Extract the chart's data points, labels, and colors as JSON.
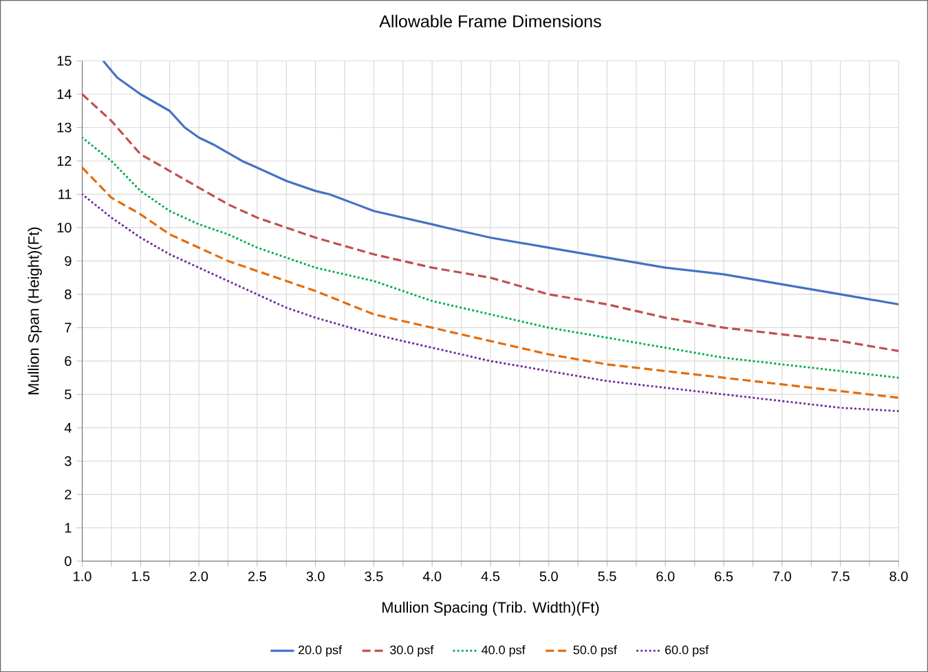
{
  "chart_data": {
    "type": "line",
    "title": "Allowable Frame Dimensions",
    "xlabel": "Mullion Spacing (Trib. Width)(Ft)",
    "ylabel": "Mullion Span (Height)(Ft)",
    "xlim": [
      1.0,
      8.0
    ],
    "ylim": [
      0,
      15
    ],
    "xticks": [
      {
        "value": 1.0,
        "label": "1.0"
      },
      {
        "value": 1.25,
        "label": null
      },
      {
        "value": 1.5,
        "label": "1.5"
      },
      {
        "value": 1.75,
        "label": null
      },
      {
        "value": 2.0,
        "label": "2.0"
      },
      {
        "value": 2.25,
        "label": null
      },
      {
        "value": 2.5,
        "label": "2.5"
      },
      {
        "value": 2.75,
        "label": null
      },
      {
        "value": 3.0,
        "label": "3.0"
      },
      {
        "value": 3.25,
        "label": null
      },
      {
        "value": 3.5,
        "label": "3.5"
      },
      {
        "value": 3.75,
        "label": null
      },
      {
        "value": 4.0,
        "label": "4.0"
      },
      {
        "value": 4.25,
        "label": null
      },
      {
        "value": 4.5,
        "label": "4.5"
      },
      {
        "value": 4.75,
        "label": null
      },
      {
        "value": 5.0,
        "label": "5.0"
      },
      {
        "value": 5.25,
        "label": null
      },
      {
        "value": 5.5,
        "label": "5.5"
      },
      {
        "value": 5.75,
        "label": null
      },
      {
        "value": 6.0,
        "label": "6.0"
      },
      {
        "value": 6.25,
        "label": null
      },
      {
        "value": 6.5,
        "label": "6.5"
      },
      {
        "value": 6.75,
        "label": null
      },
      {
        "value": 7.0,
        "label": "7.0"
      },
      {
        "value": 7.25,
        "label": null
      },
      {
        "value": 7.5,
        "label": "7.5"
      },
      {
        "value": 7.75,
        "label": null
      },
      {
        "value": 8.0,
        "label": "8.0"
      }
    ],
    "yticks": [
      0,
      1,
      2,
      3,
      4,
      5,
      6,
      7,
      8,
      9,
      10,
      11,
      12,
      13,
      14,
      15
    ],
    "grid": true,
    "legend": "bottom",
    "marker": "none",
    "series": [
      {
        "name": "20.0 psf",
        "color": "#4472c4",
        "line_style": "solid",
        "x": [
          1.18,
          1.3,
          1.5,
          1.75,
          1.88,
          2.0,
          2.12,
          2.37,
          2.5,
          2.75,
          3.0,
          3.12,
          3.5,
          4.0,
          4.12,
          4.5,
          5.0,
          5.5,
          6.0,
          6.5,
          7.0,
          7.5,
          8.0
        ],
        "values": [
          15.0,
          14.5,
          14.0,
          13.5,
          13.0,
          12.7,
          12.5,
          12.0,
          11.8,
          11.4,
          11.1,
          11.0,
          10.5,
          10.1,
          10.0,
          9.7,
          9.4,
          9.1,
          8.8,
          8.6,
          8.3,
          8.0,
          7.7
        ]
      },
      {
        "name": "30.0 psf",
        "color": "#c0504d",
        "line_style": "dashed",
        "x": [
          1.0,
          1.25,
          1.5,
          1.75,
          2.0,
          2.25,
          2.5,
          2.75,
          3.0,
          3.5,
          4.0,
          4.5,
          5.0,
          5.5,
          6.0,
          6.5,
          7.0,
          7.5,
          8.0
        ],
        "values": [
          14.0,
          13.2,
          12.2,
          11.7,
          11.2,
          10.7,
          10.3,
          10.0,
          9.7,
          9.2,
          8.8,
          8.5,
          8.0,
          7.7,
          7.3,
          7.0,
          6.8,
          6.6,
          6.3
        ]
      },
      {
        "name": "40.0 psf",
        "color": "#00b050",
        "line_style": "dotted",
        "x": [
          1.0,
          1.25,
          1.5,
          1.75,
          2.0,
          2.25,
          2.5,
          2.75,
          3.0,
          3.5,
          4.0,
          4.5,
          5.0,
          5.5,
          6.0,
          6.5,
          7.0,
          7.5,
          8.0
        ],
        "values": [
          12.7,
          12.0,
          11.1,
          10.5,
          10.1,
          9.8,
          9.4,
          9.1,
          8.8,
          8.4,
          7.8,
          7.4,
          7.0,
          6.7,
          6.4,
          6.1,
          5.9,
          5.7,
          5.5
        ]
      },
      {
        "name": "50.0 psf",
        "color": "#e46c0a",
        "line_style": "dashed",
        "x": [
          1.0,
          1.25,
          1.5,
          1.75,
          2.0,
          2.25,
          2.5,
          2.75,
          3.0,
          3.5,
          4.0,
          4.5,
          5.0,
          5.5,
          6.0,
          6.5,
          7.0,
          7.5,
          8.0
        ],
        "values": [
          11.8,
          10.9,
          10.4,
          9.8,
          9.4,
          9.0,
          8.7,
          8.4,
          8.1,
          7.4,
          7.0,
          6.6,
          6.2,
          5.9,
          5.7,
          5.5,
          5.3,
          5.1,
          4.9
        ]
      },
      {
        "name": "60.0 psf",
        "color": "#7030a0",
        "line_style": "dotted",
        "x": [
          1.0,
          1.25,
          1.5,
          1.75,
          2.0,
          2.25,
          2.5,
          2.75,
          3.0,
          3.5,
          4.0,
          4.5,
          5.0,
          5.5,
          6.0,
          6.5,
          7.0,
          7.5,
          8.0
        ],
        "values": [
          11.0,
          10.3,
          9.7,
          9.2,
          8.8,
          8.4,
          8.0,
          7.6,
          7.3,
          6.8,
          6.4,
          6.0,
          5.7,
          5.4,
          5.2,
          5.0,
          4.8,
          4.6,
          4.5
        ]
      }
    ]
  }
}
